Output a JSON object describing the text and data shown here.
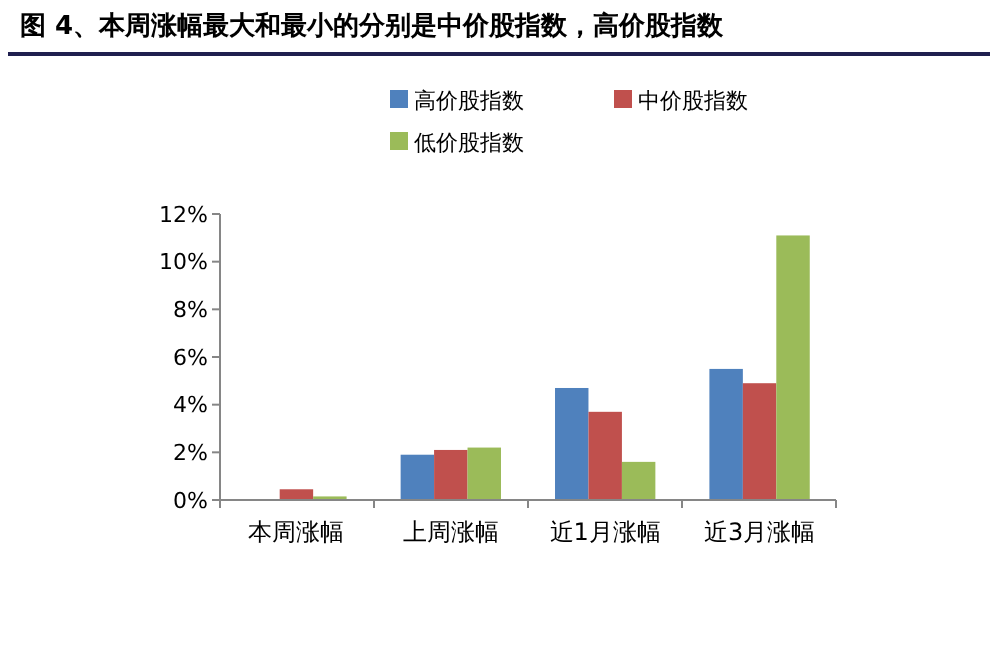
{
  "chart_data": {
    "type": "bar",
    "title": "图 4、本周涨幅最大和最小的分别是中价股指数，高价股指数",
    "categories": [
      "本周涨幅",
      "上周涨幅",
      "近1月涨幅",
      "近3月涨幅"
    ],
    "series": [
      {
        "name": "高价股指数",
        "color": "#4f81bd",
        "values": [
          0,
          1.9,
          4.7,
          5.5
        ]
      },
      {
        "name": "中价股指数",
        "color": "#c0504d",
        "values": [
          0.45,
          2.1,
          3.7,
          4.9
        ]
      },
      {
        "name": "低价股指数",
        "color": "#9bbb59",
        "values": [
          0.15,
          2.2,
          1.6,
          11.1
        ]
      }
    ],
    "ylim": [
      0,
      12
    ],
    "yticks": [
      {
        "value": 0,
        "label": "0%"
      },
      {
        "value": 2,
        "label": "2%"
      },
      {
        "value": 4,
        "label": "4%"
      },
      {
        "value": 6,
        "label": "6%"
      },
      {
        "value": 8,
        "label": "8%"
      },
      {
        "value": 10,
        "label": "10%"
      },
      {
        "value": 12,
        "label": "12%"
      }
    ],
    "grid": false,
    "legend": "top"
  }
}
